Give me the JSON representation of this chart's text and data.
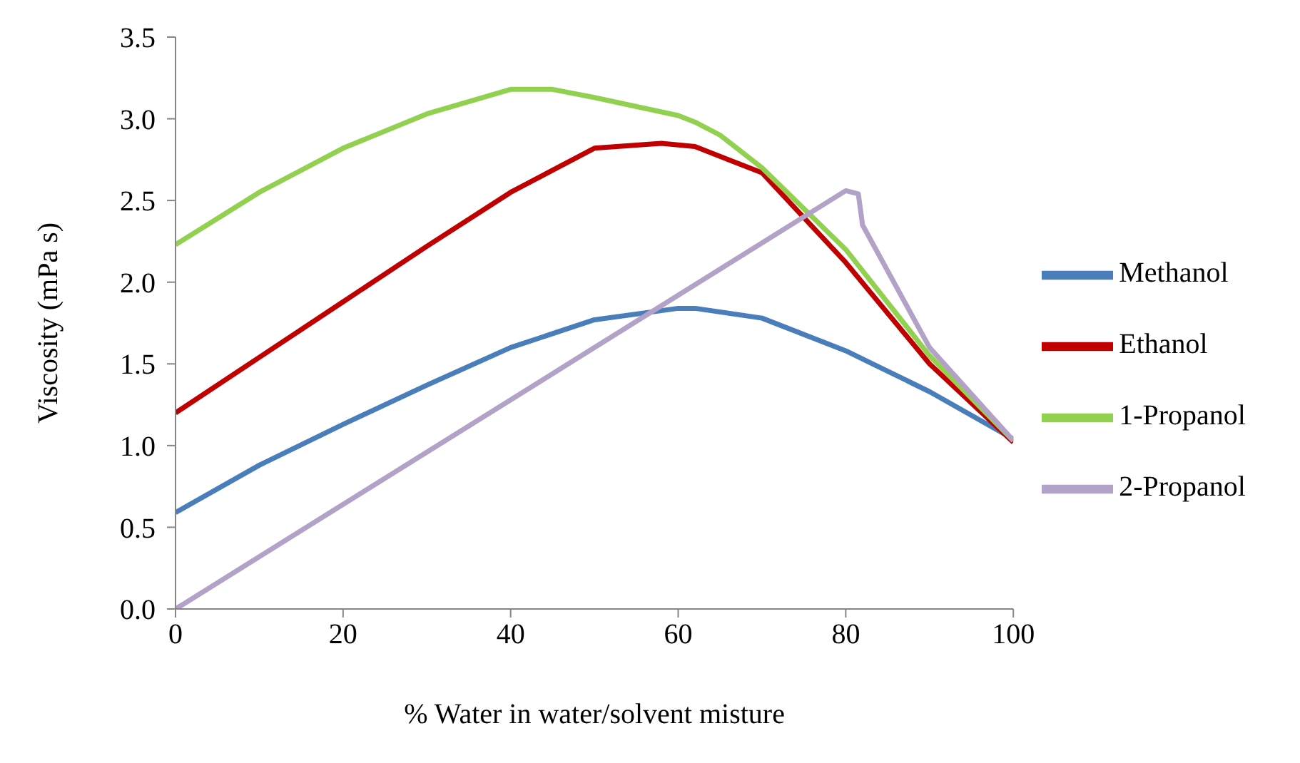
{
  "chart_data": {
    "type": "line",
    "xlabel": "% Water in water/solvent misture",
    "ylabel": "Viscosity (mPa s)",
    "xlim": [
      0,
      100
    ],
    "xticks": [
      0,
      20,
      40,
      60,
      80,
      100
    ],
    "ylim": [
      0,
      3.5
    ],
    "yticks": [
      {
        "value": 0,
        "label": "0.0"
      },
      {
        "value": 0.5,
        "label": "0.5"
      },
      {
        "value": 1,
        "label": "1.0"
      },
      {
        "value": 1.5,
        "label": "1.5"
      },
      {
        "value": 2,
        "label": "2.0"
      },
      {
        "value": 2.5,
        "label": "2.5"
      },
      {
        "value": 3,
        "label": "3.0"
      },
      {
        "value": 3.5,
        "label": "3.5"
      }
    ],
    "legend": "right",
    "marker": "none",
    "line_style": "solid",
    "series": [
      {
        "name": "Methanol",
        "color": "#4a7ebb",
        "x": [
          0,
          10,
          20,
          30,
          40,
          50,
          60,
          62,
          70,
          80,
          90,
          100
        ],
        "values": [
          0.59,
          0.88,
          1.13,
          1.37,
          1.6,
          1.77,
          1.84,
          1.84,
          1.78,
          1.58,
          1.33,
          1.04
        ]
      },
      {
        "name": "Ethanol",
        "color": "#c00000",
        "x": [
          0,
          10,
          20,
          30,
          40,
          50,
          58,
          62,
          70,
          80,
          90,
          100
        ],
        "values": [
          1.2,
          1.54,
          1.88,
          2.22,
          2.55,
          2.82,
          2.85,
          2.83,
          2.67,
          2.12,
          1.5,
          1.02
        ]
      },
      {
        "name": "1-Propanol",
        "color": "#92d050",
        "x": [
          0,
          10,
          20,
          30,
          40,
          45,
          50,
          60,
          62,
          65,
          70,
          80,
          90,
          100
        ],
        "values": [
          2.23,
          2.55,
          2.82,
          3.03,
          3.18,
          3.18,
          3.13,
          3.02,
          2.98,
          2.9,
          2.7,
          2.2,
          1.55,
          1.03
        ]
      },
      {
        "name": "2-Propanol",
        "color": "#b3a2c7",
        "x": [
          0,
          80,
          81.5,
          82,
          90,
          100
        ],
        "values": [
          0,
          2.56,
          2.54,
          2.35,
          1.6,
          1.03
        ]
      }
    ]
  }
}
